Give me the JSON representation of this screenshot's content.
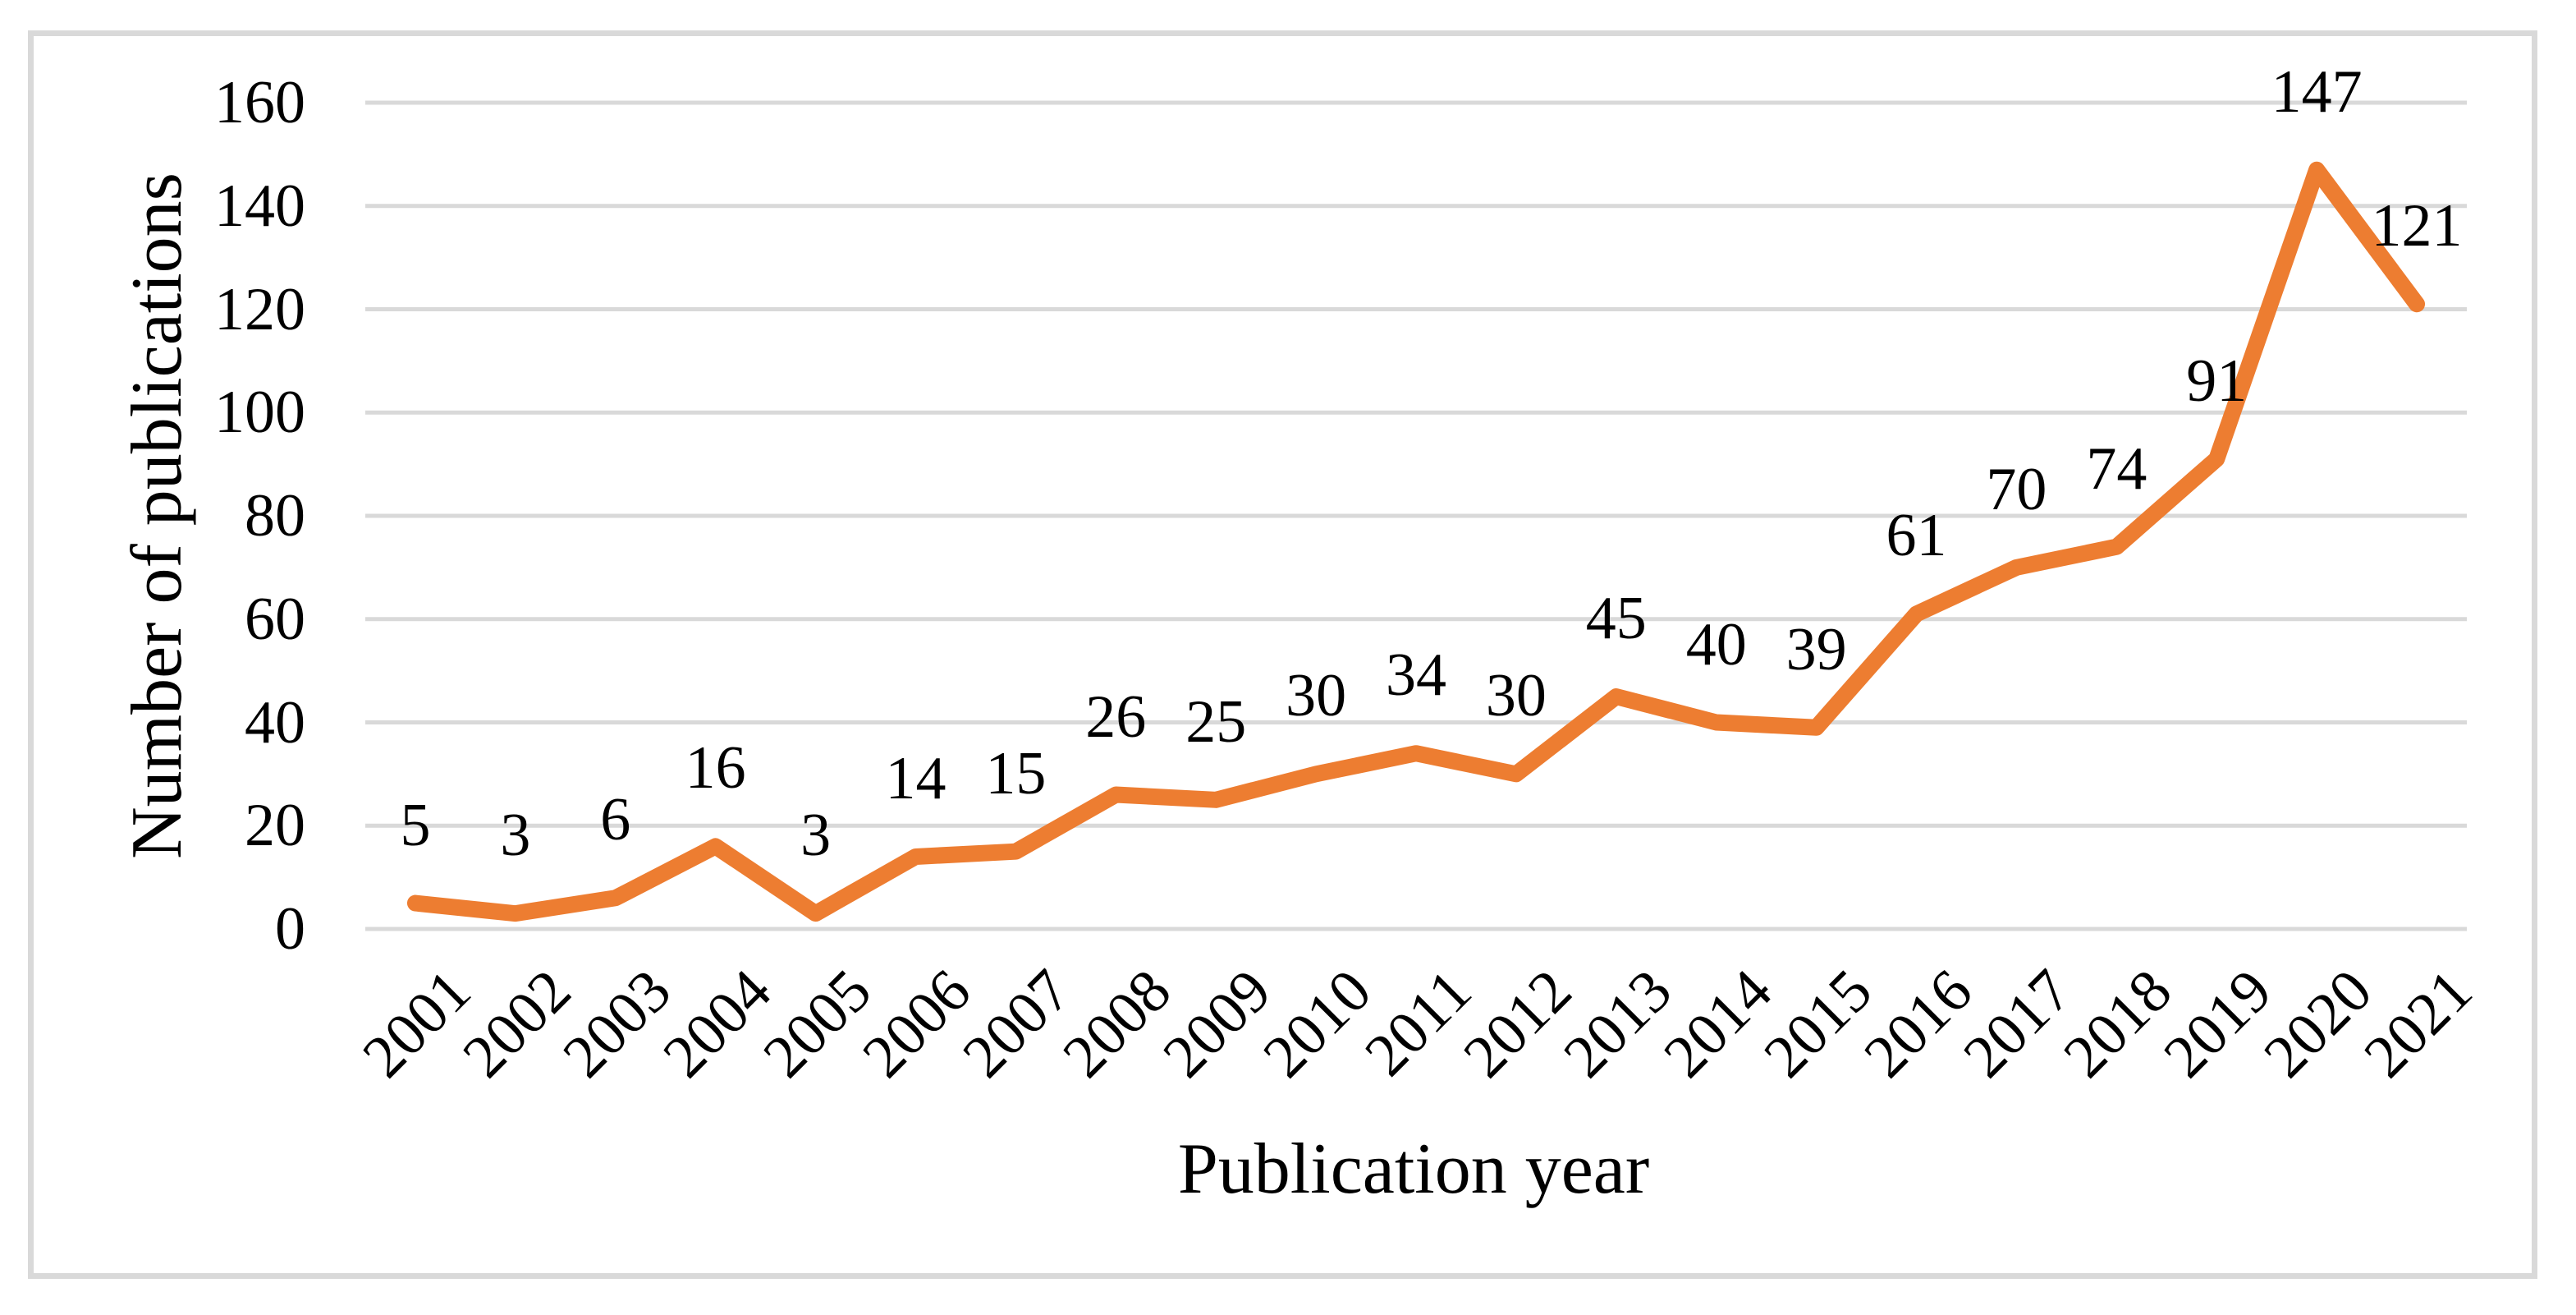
{
  "figure": {
    "background": "#FFFFFF",
    "border_color": "#D9D9D9"
  },
  "chart_data": {
    "type": "line",
    "title": "",
    "xlabel": "Publication year",
    "ylabel": "Number of publications",
    "categories": [
      "2001",
      "2002",
      "2003",
      "2004",
      "2005",
      "2006",
      "2007",
      "2008",
      "2009",
      "2010",
      "2011",
      "2012",
      "2013",
      "2014",
      "2015",
      "2016",
      "2017",
      "2018",
      "2019",
      "2020",
      "2021"
    ],
    "series": [
      {
        "name": "Number of publications",
        "color": "#ED7D31",
        "values": [
          5,
          3,
          6,
          16,
          3,
          14,
          15,
          26,
          25,
          30,
          34,
          30,
          45,
          40,
          39,
          61,
          70,
          74,
          91,
          147,
          121
        ]
      }
    ],
    "data_labels": [
      5,
      3,
      6,
      16,
      3,
      14,
      15,
      26,
      25,
      30,
      34,
      30,
      45,
      40,
      39,
      61,
      70,
      74,
      91,
      147,
      121
    ],
    "ylim": [
      0,
      160
    ],
    "y_ticks": [
      0,
      20,
      40,
      60,
      80,
      100,
      120,
      140,
      160
    ],
    "grid": "horizontal",
    "gridline_color": "#D9D9D9",
    "legend": "none",
    "marker": "none"
  }
}
